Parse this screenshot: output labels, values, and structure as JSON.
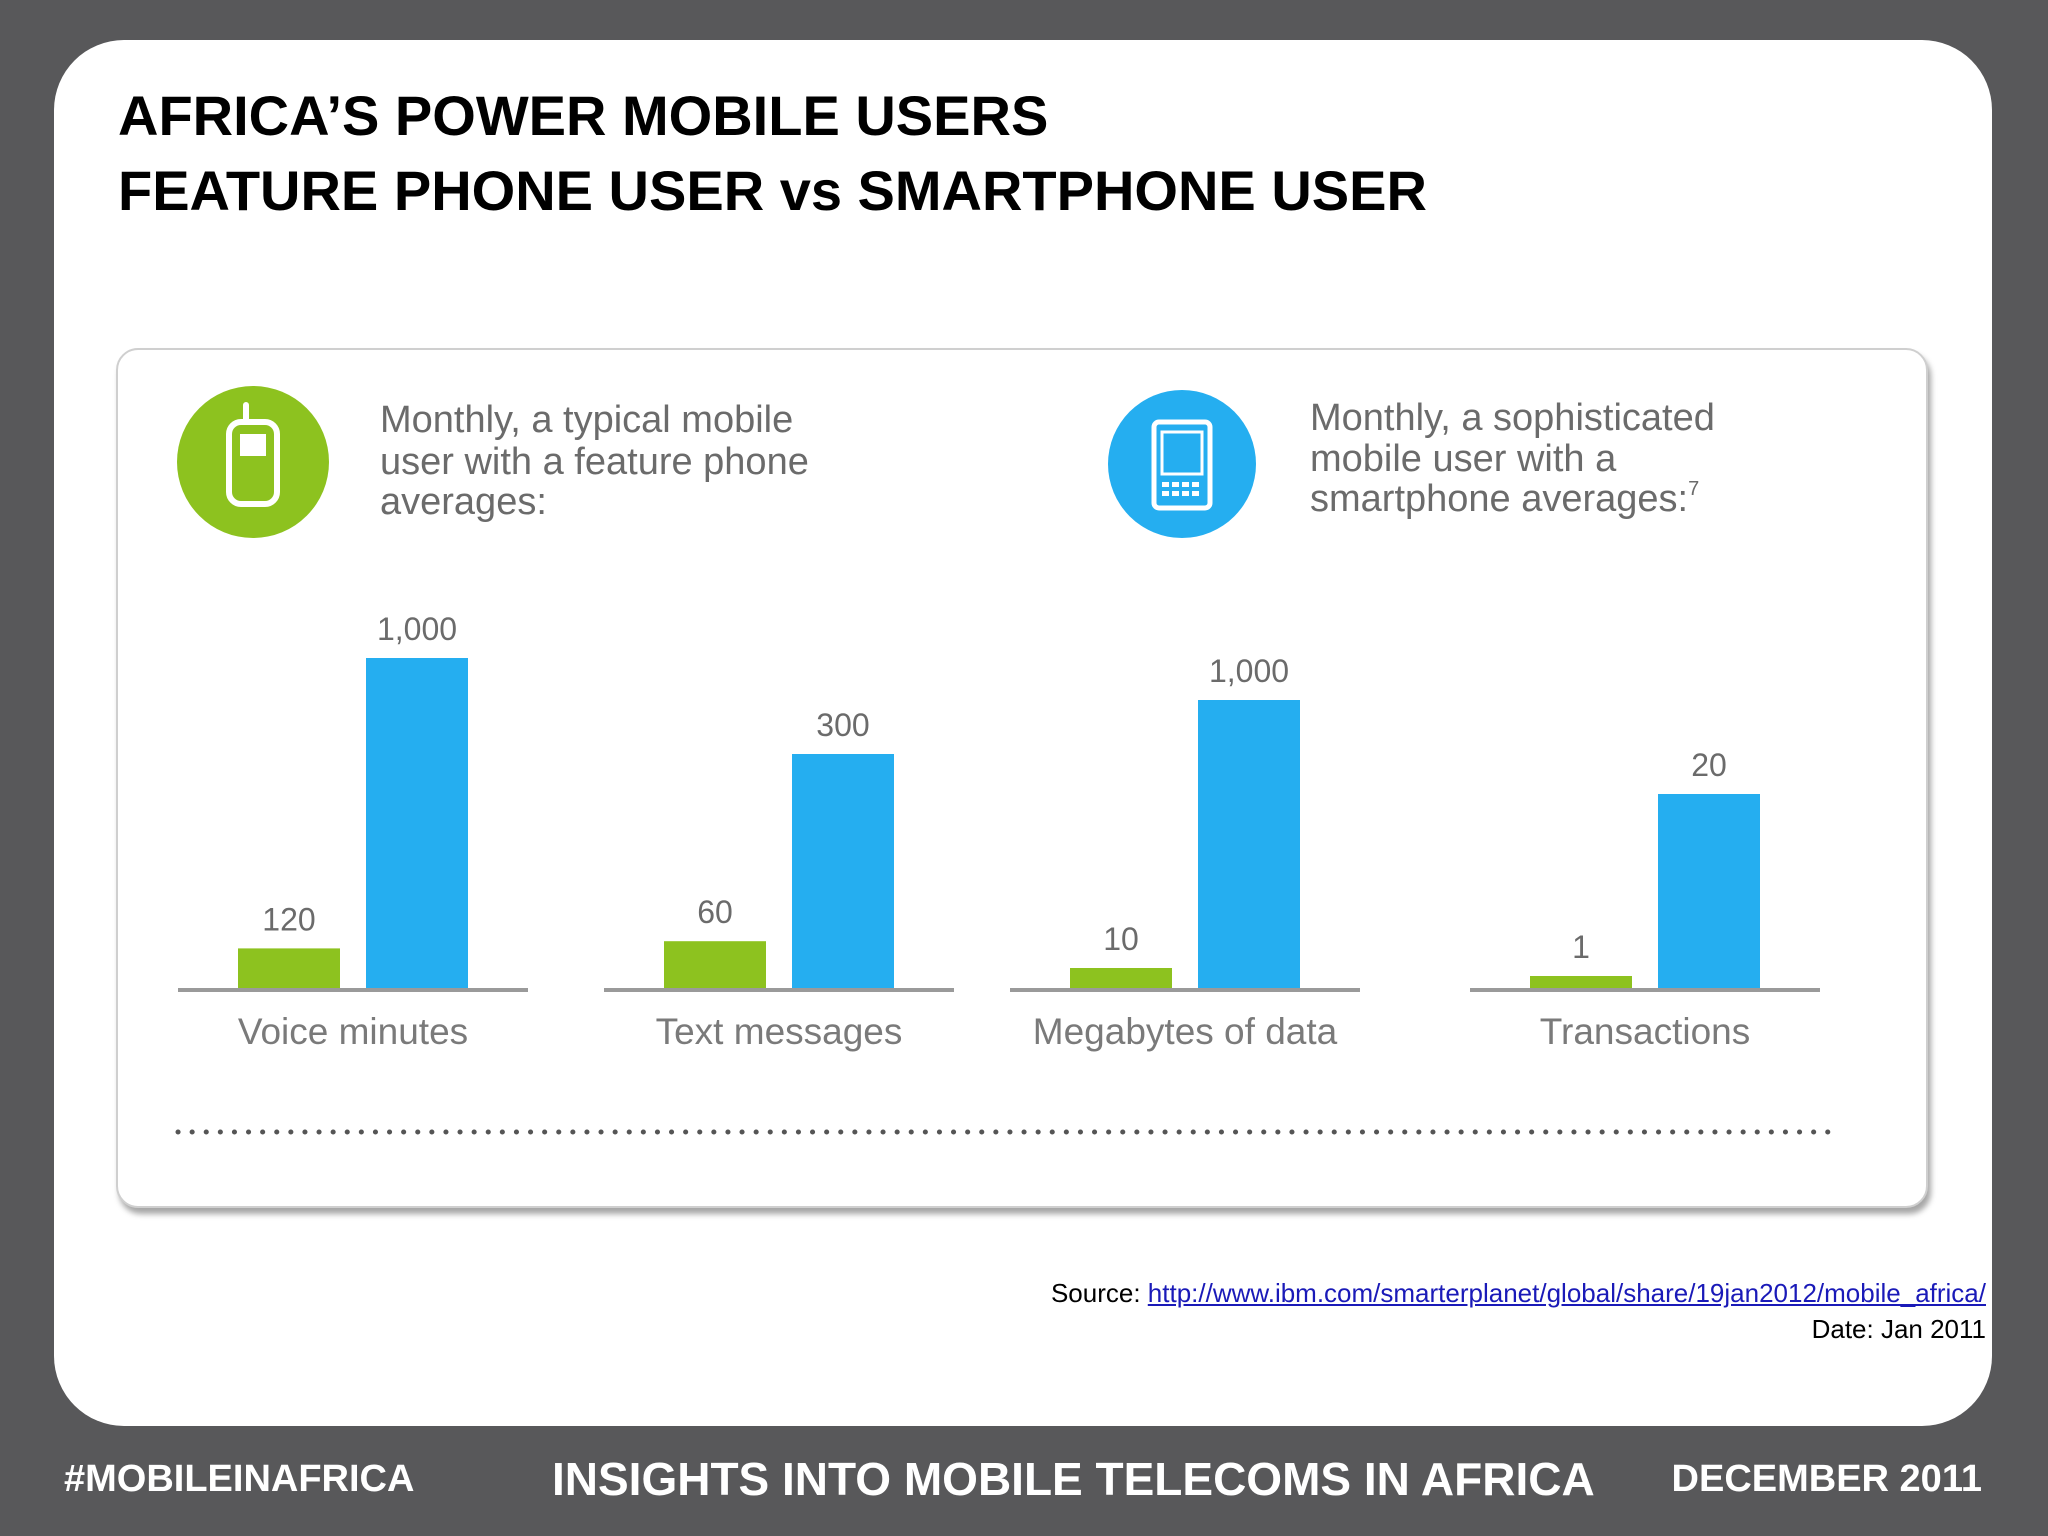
{
  "title": {
    "line1": "AFRICA’S POWER MOBILE USERS",
    "line2": "FEATURE PHONE USER vs SMARTPHONE USER"
  },
  "panel": {
    "feature_heading": [
      "Monthly, a typical mobile",
      "user with a feature phone",
      "averages:"
    ],
    "smart_heading": [
      "Monthly, a sophisticated",
      "mobile user with a",
      "smartphone averages:"
    ],
    "smart_footnote": "7",
    "icons": [
      "feature-phone-icon",
      "smartphone-icon"
    ]
  },
  "chart_data": {
    "type": "bar",
    "categories": [
      "Voice minutes",
      "Text messages",
      "Megabytes of data",
      "Transactions"
    ],
    "series": [
      {
        "values": [
          120,
          60,
          10,
          1
        ],
        "color": "#8dc21f"
      },
      {
        "values": [
          1000,
          300,
          1000,
          20
        ],
        "color": "#25aef0"
      }
    ],
    "value_labels": [
      [
        "120",
        "60",
        "10",
        "1"
      ],
      [
        "1,000",
        "300",
        "1,000",
        "20"
      ]
    ],
    "note": "each category drawn on its own independent scale"
  },
  "source": {
    "label": "Source: ",
    "url": "http://www.ibm.com/smarterplanet/global/share/19jan2012/mobile_africa/",
    "date": "Date: Jan 2011"
  },
  "footer": {
    "left": "#MOBILEINAFRICA",
    "center": "INSIGHTS INTO MOBILE TELECOMS IN AFRICA",
    "right": "DECEMBER 2011"
  },
  "colors": {
    "background": "#58585a",
    "feature": "#8dc21f",
    "smart": "#25aef0",
    "heading_text": "#6b6b6b"
  }
}
